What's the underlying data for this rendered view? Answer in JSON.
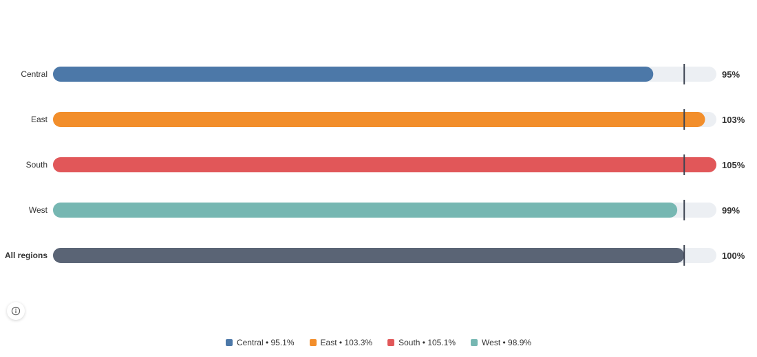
{
  "chart_data": {
    "type": "bar",
    "orientation": "horizontal",
    "target_marker": 100,
    "xlim": [
      0,
      105.1
    ],
    "grid": false,
    "legend_position": "bottom",
    "rows": [
      {
        "category": "Central",
        "value": 95.1,
        "label": "95%",
        "color": "#4c78a8",
        "emphasis": false
      },
      {
        "category": "East",
        "value": 103.3,
        "label": "103%",
        "color": "#f28e2b",
        "emphasis": false
      },
      {
        "category": "South",
        "value": 105.1,
        "label": "105%",
        "color": "#e15759",
        "emphasis": false
      },
      {
        "category": "West",
        "value": 98.9,
        "label": "99%",
        "color": "#76b7b2",
        "emphasis": false
      },
      {
        "category": "All regions",
        "value": 100.0,
        "label": "100%",
        "color": "#5a6475",
        "emphasis": true
      }
    ],
    "legend": [
      {
        "name": "Central • 95.1%",
        "color": "#4c78a8"
      },
      {
        "name": "East • 103.3%",
        "color": "#f28e2b"
      },
      {
        "name": "South • 105.1%",
        "color": "#e15759"
      },
      {
        "name": "West • 98.9%",
        "color": "#76b7b2"
      }
    ]
  },
  "track_color": "#eceff3",
  "marker_color": "#3d4452",
  "info_icon": "info-icon"
}
